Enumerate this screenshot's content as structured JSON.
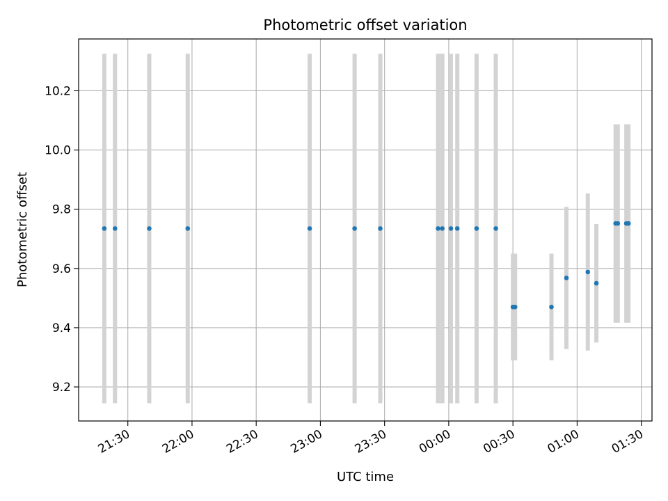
{
  "chart_data": {
    "type": "scatter",
    "title": "Photometric offset variation",
    "xlabel": "UTC time",
    "ylabel": "Photometric offset",
    "x_unit": "UTC time (HH:MM)",
    "xlim": [
      "21:07",
      "01:35"
    ],
    "ylim": [
      9.085,
      10.375
    ],
    "x_ticks": [
      "21:30",
      "22:00",
      "22:30",
      "23:00",
      "23:30",
      "00:00",
      "00:30",
      "01:00",
      "01:30"
    ],
    "y_ticks": [
      "9.2",
      "9.4",
      "9.6",
      "9.8",
      "10.0",
      "10.2"
    ],
    "grid": true,
    "marker_color": "#1f77b4",
    "errorbar_color": "#d3d3d3",
    "series": [
      {
        "points": [
          {
            "x": "21:19",
            "y": 9.735,
            "err": 0.59
          },
          {
            "x": "21:24",
            "y": 9.735,
            "err": 0.59
          },
          {
            "x": "21:40",
            "y": 9.735,
            "err": 0.59
          },
          {
            "x": "21:58",
            "y": 9.735,
            "err": 0.59
          },
          {
            "x": "22:55",
            "y": 9.735,
            "err": 0.59
          },
          {
            "x": "23:16",
            "y": 9.735,
            "err": 0.59
          },
          {
            "x": "23:28",
            "y": 9.735,
            "err": 0.59
          },
          {
            "x": "23:55",
            "y": 9.735,
            "err": 0.59
          },
          {
            "x": "23:57",
            "y": 9.735,
            "err": 0.59
          },
          {
            "x": "00:01",
            "y": 9.735,
            "err": 0.59
          },
          {
            "x": "00:04",
            "y": 9.735,
            "err": 0.59
          },
          {
            "x": "00:13",
            "y": 9.735,
            "err": 0.59
          },
          {
            "x": "00:22",
            "y": 9.735,
            "err": 0.59
          },
          {
            "x": "00:30",
            "y": 9.47,
            "err": 0.18
          },
          {
            "x": "00:31",
            "y": 9.47,
            "err": 0.18
          },
          {
            "x": "00:48",
            "y": 9.47,
            "err": 0.18
          },
          {
            "x": "00:55",
            "y": 9.568,
            "err": 0.24
          },
          {
            "x": "01:05",
            "y": 9.588,
            "err": 0.265
          },
          {
            "x": "01:09",
            "y": 9.55,
            "err": 0.2
          },
          {
            "x": "01:18",
            "y": 9.752,
            "err": 0.335
          },
          {
            "x": "01:19",
            "y": 9.752,
            "err": 0.335
          },
          {
            "x": "01:23",
            "y": 9.752,
            "err": 0.335
          },
          {
            "x": "01:24",
            "y": 9.752,
            "err": 0.335
          }
        ]
      }
    ]
  }
}
